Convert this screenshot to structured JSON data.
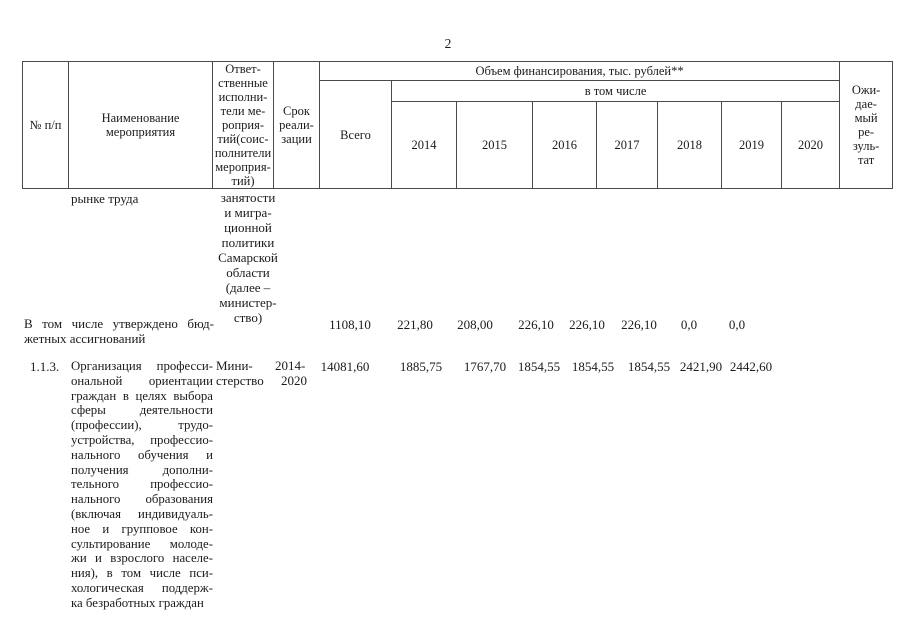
{
  "page": {
    "number": "2"
  },
  "table": {
    "header": {
      "col_number": "№ п/п",
      "col_name": "Наименование\nмероприятия",
      "col_executors_lines": [
        "Ответ-",
        "ственные",
        "исполни-",
        "тели ме-",
        "роприя-",
        "тий(соис-",
        "полнители",
        "мероприя-",
        "тий)"
      ],
      "col_term": "Срок\nреали-\nзации",
      "financing_title": "Объем финансирования, тыс. рублей**",
      "including": "в том числе",
      "total": "Всего",
      "years": [
        "2014",
        "2015",
        "2016",
        "2017",
        "2018",
        "2019",
        "2020"
      ],
      "col_result_lines": [
        "Ожи-",
        "дае-",
        "мый",
        "ре-",
        "зуль-",
        "тат"
      ]
    },
    "rows": {
      "carryover": {
        "name": "рынке труда",
        "executor_lines": [
          "занятости",
          "и мигра-",
          "ционной",
          "политики",
          "Самарской",
          "области",
          "(далее –",
          "министер-",
          "ство)"
        ]
      },
      "budget": {
        "label_lines": [
          "В том числе утверждено бюд-",
          "жетных ассигнований"
        ],
        "values": [
          "1108,10",
          "221,80",
          "208,00",
          "226,10",
          "226,10",
          "226,10",
          "0,0",
          "0,0"
        ]
      },
      "item113": {
        "number": "1.1.3.",
        "name_lines": [
          "Организация професси-",
          "ональной ориентации",
          "граждан в целях выбора",
          "сферы деятельности",
          "(профессии), трудо-",
          "устройства, профессио-",
          "нального обучения и",
          "получения дополни-",
          "тельного профессио-",
          "нального образования",
          "(включая индивидуаль-",
          "ное и групповое кон-",
          "сультирование молоде-",
          "жи и взрослого населе-",
          "ния), в том числе пси-",
          "хологическая поддерж-",
          "ка безработных граждан"
        ],
        "executor_lines": [
          "Мини-",
          "стерство"
        ],
        "term_lines": [
          "2014-",
          "2020"
        ],
        "values": [
          "14081,60",
          "1885,75",
          "1767,70",
          "1854,55",
          "1854,55",
          "1854,55",
          "2421,90",
          "2442,60"
        ]
      }
    }
  }
}
